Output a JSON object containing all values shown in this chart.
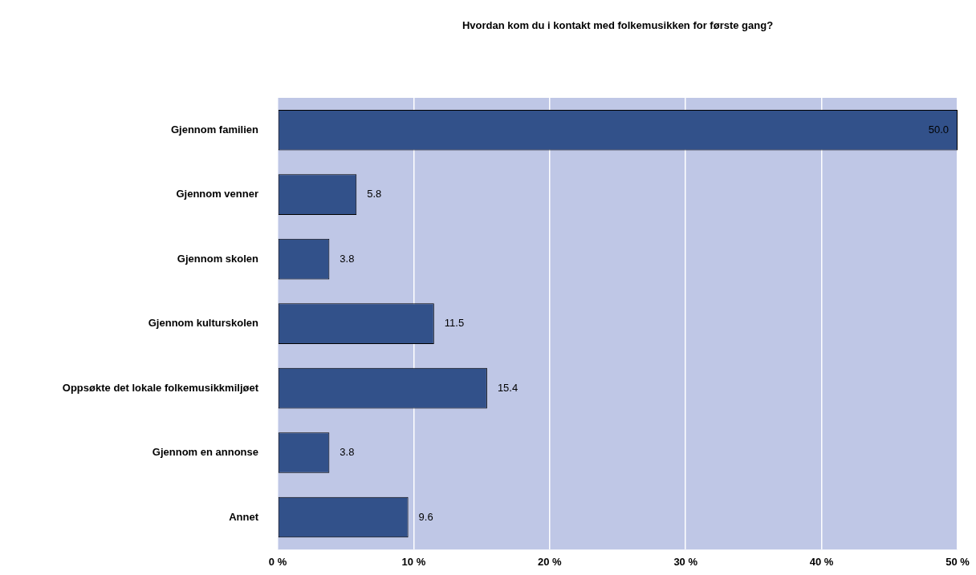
{
  "chart_data": {
    "type": "bar",
    "orientation": "horizontal",
    "title": "Hvordan kom du i kontakt med folkemusikken for første gang?",
    "categories": [
      "Gjennom familien",
      "Gjennom venner",
      "Gjennom skolen",
      "Gjennom kulturskolen",
      "Oppsøkte det lokale folkemusikkmiljøet",
      "Gjennom en annonse",
      "Annet"
    ],
    "values": [
      50.0,
      5.8,
      3.8,
      11.5,
      15.4,
      3.8,
      9.6
    ],
    "value_labels": [
      "50.0",
      "5.8",
      "3.8",
      "11.5",
      "15.4",
      "3.8",
      "9.6"
    ],
    "color": "#32518a",
    "xlim": [
      0,
      50
    ],
    "xticks": [
      {
        "value": 0,
        "label": "0 %"
      },
      {
        "value": 10,
        "label": "10 %"
      },
      {
        "value": 20,
        "label": "20 %"
      },
      {
        "value": 30,
        "label": "30 %"
      },
      {
        "value": 40,
        "label": "40 %"
      },
      {
        "value": 50,
        "label": "50 %"
      }
    ],
    "grid": "x",
    "legend": false
  }
}
